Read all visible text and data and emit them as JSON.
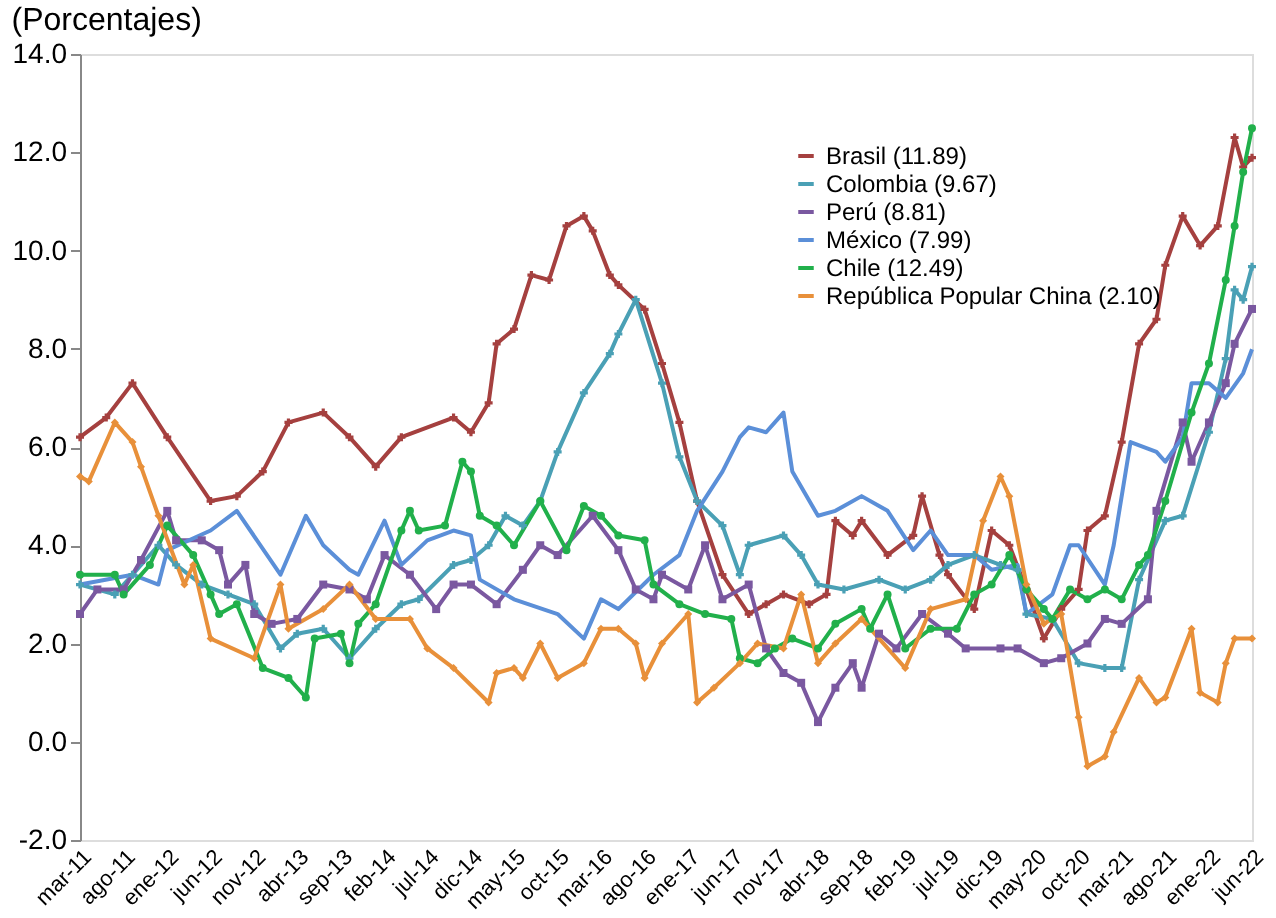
{
  "chart_data": {
    "type": "line",
    "title": "(Porcentajes)",
    "legend": "top right",
    "grid": false,
    "xlim": [
      "2011-03",
      "2022-06"
    ],
    "xticks": [
      {
        "value": "2011-03",
        "label": "mar-11"
      },
      {
        "value": "2011-08",
        "label": "ago-11"
      },
      {
        "value": "2012-01",
        "label": "ene-12"
      },
      {
        "value": "2012-06",
        "label": "jun-12"
      },
      {
        "value": "2012-11",
        "label": "nov-12"
      },
      {
        "value": "2013-04",
        "label": "abr-13"
      },
      {
        "value": "2013-09",
        "label": "sep-13"
      },
      {
        "value": "2014-02",
        "label": "feb-14"
      },
      {
        "value": "2014-07",
        "label": "jul-14"
      },
      {
        "value": "2014-12",
        "label": "dic-14"
      },
      {
        "value": "2015-05",
        "label": "may-15"
      },
      {
        "value": "2015-10",
        "label": "oct-15"
      },
      {
        "value": "2016-03",
        "label": "mar-16"
      },
      {
        "value": "2016-08",
        "label": "ago-16"
      },
      {
        "value": "2017-01",
        "label": "ene-17"
      },
      {
        "value": "2017-06",
        "label": "jun-17"
      },
      {
        "value": "2017-11",
        "label": "nov-17"
      },
      {
        "value": "2018-04",
        "label": "abr-18"
      },
      {
        "value": "2018-09",
        "label": "sep-18"
      },
      {
        "value": "2019-02",
        "label": "feb-19"
      },
      {
        "value": "2019-07",
        "label": "jul-19"
      },
      {
        "value": "2019-12",
        "label": "dic-19"
      },
      {
        "value": "2020-05",
        "label": "may-20"
      },
      {
        "value": "2020-10",
        "label": "oct-20"
      },
      {
        "value": "2021-03",
        "label": "mar-21"
      },
      {
        "value": "2021-08",
        "label": "ago-21"
      },
      {
        "value": "2022-01",
        "label": "ene-22"
      },
      {
        "value": "2022-06",
        "label": "jun-22"
      }
    ],
    "ylim": [
      -2,
      14
    ],
    "yticks": [
      {
        "value": -2,
        "label": "-2.0"
      },
      {
        "value": 0,
        "label": "0.0"
      },
      {
        "value": 2,
        "label": "2.0"
      },
      {
        "value": 4,
        "label": "4.0"
      },
      {
        "value": 6,
        "label": "6.0"
      },
      {
        "value": 8,
        "label": "8.0"
      },
      {
        "value": 10,
        "label": "10.0"
      },
      {
        "value": 12,
        "label": "12.0"
      },
      {
        "value": 14,
        "label": "14.0"
      }
    ],
    "series": [
      {
        "name": "Brasil (11.89)",
        "color": "#a5403f",
        "marker": "cross",
        "x": [
          "2011-03",
          "2011-06",
          "2011-09",
          "2012-01",
          "2012-06",
          "2012-09",
          "2012-12",
          "2013-03",
          "2013-07",
          "2013-10",
          "2014-01",
          "2014-04",
          "2014-10",
          "2014-12",
          "2015-02",
          "2015-03",
          "2015-05",
          "2015-07",
          "2015-09",
          "2015-11",
          "2016-01",
          "2016-02",
          "2016-04",
          "2016-05",
          "2016-08",
          "2016-10",
          "2016-12",
          "2017-02",
          "2017-05",
          "2017-08",
          "2017-10",
          "2017-12",
          "2018-03",
          "2018-05",
          "2018-06",
          "2018-08",
          "2018-09",
          "2018-12",
          "2019-03",
          "2019-04",
          "2019-06",
          "2019-07",
          "2019-10",
          "2019-12",
          "2020-02",
          "2020-04",
          "2020-06",
          "2020-08",
          "2020-10",
          "2020-11",
          "2021-01",
          "2021-03",
          "2021-05",
          "2021-07",
          "2021-08",
          "2021-10",
          "2021-12",
          "2022-02",
          "2022-04",
          "2022-05",
          "2022-06"
        ],
        "values": [
          6.2,
          6.6,
          7.3,
          6.2,
          4.9,
          5.0,
          5.5,
          6.5,
          6.7,
          6.2,
          5.6,
          6.2,
          6.6,
          6.3,
          6.9,
          8.1,
          8.4,
          9.5,
          9.4,
          10.5,
          10.7,
          10.4,
          9.5,
          9.3,
          8.8,
          7.7,
          6.5,
          4.9,
          3.4,
          2.6,
          2.8,
          3.0,
          2.8,
          3.0,
          4.5,
          4.2,
          4.5,
          3.8,
          4.2,
          5.0,
          3.8,
          3.4,
          2.7,
          4.3,
          4.0,
          3.1,
          2.1,
          2.7,
          3.1,
          4.3,
          4.6,
          6.1,
          8.1,
          8.6,
          9.7,
          10.7,
          10.1,
          10.5,
          12.3,
          11.7,
          11.89
        ]
      },
      {
        "name": "Colombia (9.67)",
        "color": "#4aa0b5",
        "marker": "cross",
        "x": [
          "2011-03",
          "2011-07",
          "2011-09",
          "2011-12",
          "2012-02",
          "2012-05",
          "2012-08",
          "2012-11",
          "2013-02",
          "2013-04",
          "2013-07",
          "2013-10",
          "2014-01",
          "2014-04",
          "2014-06",
          "2014-10",
          "2014-12",
          "2015-02",
          "2015-04",
          "2015-06",
          "2015-08",
          "2015-10",
          "2016-01",
          "2016-04",
          "2016-05",
          "2016-07",
          "2016-10",
          "2016-12",
          "2017-02",
          "2017-05",
          "2017-07",
          "2017-08",
          "2017-12",
          "2018-02",
          "2018-04",
          "2018-07",
          "2018-11",
          "2019-02",
          "2019-05",
          "2019-07",
          "2019-10",
          "2020-01",
          "2020-03",
          "2020-04",
          "2020-07",
          "2020-10",
          "2021-01",
          "2021-03",
          "2021-05",
          "2021-08",
          "2021-10",
          "2022-01",
          "2022-03",
          "2022-04",
          "2022-05",
          "2022-06"
        ],
        "values": [
          3.2,
          3.0,
          3.4,
          4.0,
          3.6,
          3.2,
          3.0,
          2.8,
          1.9,
          2.2,
          2.3,
          1.7,
          2.3,
          2.8,
          2.9,
          3.6,
          3.7,
          4.0,
          4.6,
          4.4,
          4.9,
          5.9,
          7.1,
          7.9,
          8.3,
          9.0,
          7.3,
          5.8,
          4.9,
          4.4,
          3.4,
          4.0,
          4.2,
          3.8,
          3.2,
          3.1,
          3.3,
          3.1,
          3.3,
          3.6,
          3.8,
          3.6,
          3.5,
          2.6,
          2.5,
          1.6,
          1.5,
          1.5,
          3.3,
          4.5,
          4.6,
          6.3,
          7.8,
          9.2,
          9.0,
          9.67
        ]
      },
      {
        "name": "Perú (8.81)",
        "color": "#7a58a0",
        "marker": "square",
        "x": [
          "2011-03",
          "2011-05",
          "2011-08",
          "2011-10",
          "2012-01",
          "2012-02",
          "2012-05",
          "2012-07",
          "2012-08",
          "2012-10",
          "2012-11",
          "2013-01",
          "2013-04",
          "2013-07",
          "2013-10",
          "2013-12",
          "2014-02",
          "2014-05",
          "2014-08",
          "2014-10",
          "2014-12",
          "2015-03",
          "2015-06",
          "2015-08",
          "2015-10",
          "2016-02",
          "2016-05",
          "2016-07",
          "2016-09",
          "2016-10",
          "2017-01",
          "2017-03",
          "2017-05",
          "2017-08",
          "2017-10",
          "2017-12",
          "2018-02",
          "2018-04",
          "2018-06",
          "2018-08",
          "2018-09",
          "2018-11",
          "2019-01",
          "2019-04",
          "2019-07",
          "2019-09",
          "2020-01",
          "2020-03",
          "2020-06",
          "2020-08",
          "2020-11",
          "2021-01",
          "2021-03",
          "2021-06",
          "2021-07",
          "2021-10",
          "2021-11",
          "2022-01",
          "2022-03",
          "2022-04",
          "2022-06"
        ],
        "values": [
          2.6,
          3.1,
          3.1,
          3.7,
          4.7,
          4.1,
          4.1,
          3.9,
          3.2,
          3.6,
          2.6,
          2.4,
          2.5,
          3.2,
          3.1,
          2.9,
          3.8,
          3.4,
          2.7,
          3.2,
          3.2,
          2.8,
          3.5,
          4.0,
          3.8,
          4.6,
          3.9,
          3.1,
          2.9,
          3.4,
          3.1,
          4.0,
          2.9,
          3.2,
          1.9,
          1.4,
          1.2,
          0.4,
          1.1,
          1.6,
          1.1,
          2.2,
          1.9,
          2.6,
          2.2,
          1.9,
          1.9,
          1.9,
          1.6,
          1.7,
          2.0,
          2.5,
          2.4,
          2.9,
          4.7,
          6.5,
          5.7,
          6.5,
          7.3,
          8.1,
          8.81
        ]
      },
      {
        "name": "México (7.99)",
        "color": "#5b8fd8",
        "marker": "none",
        "x": [
          "2011-03",
          "2011-09",
          "2011-12",
          "2012-01",
          "2012-06",
          "2012-09",
          "2013-02",
          "2013-05",
          "2013-07",
          "2013-10",
          "2013-11",
          "2014-02",
          "2014-04",
          "2014-07",
          "2014-10",
          "2014-12",
          "2015-01",
          "2015-05",
          "2015-10",
          "2016-01",
          "2016-03",
          "2016-05",
          "2016-09",
          "2016-12",
          "2017-02",
          "2017-05",
          "2017-07",
          "2017-08",
          "2017-10",
          "2017-12",
          "2018-01",
          "2018-04",
          "2018-06",
          "2018-09",
          "2018-12",
          "2019-03",
          "2019-05",
          "2019-07",
          "2019-10",
          "2019-12",
          "2020-03",
          "2020-04",
          "2020-07",
          "2020-09",
          "2020-10",
          "2021-01",
          "2021-02",
          "2021-04",
          "2021-07",
          "2021-08",
          "2021-10",
          "2021-11",
          "2022-01",
          "2022-03",
          "2022-05",
          "2022-06"
        ],
        "values": [
          3.2,
          3.4,
          3.2,
          3.9,
          4.3,
          4.7,
          3.4,
          4.6,
          4.0,
          3.5,
          3.4,
          4.5,
          3.6,
          4.1,
          4.3,
          4.2,
          3.3,
          2.9,
          2.6,
          2.1,
          2.9,
          2.7,
          3.4,
          3.8,
          4.7,
          5.5,
          6.2,
          6.4,
          6.3,
          6.7,
          5.5,
          4.6,
          4.7,
          5.0,
          4.7,
          3.9,
          4.3,
          3.8,
          3.8,
          3.5,
          3.6,
          2.6,
          3.0,
          4.0,
          4.0,
          3.2,
          4.0,
          6.1,
          5.9,
          5.7,
          6.2,
          7.3,
          7.3,
          7.0,
          7.5,
          7.99
        ]
      },
      {
        "name": "Chile (12.49)",
        "color": "#21b04b",
        "marker": "circle",
        "x": [
          "2011-03",
          "2011-07",
          "2011-08",
          "2011-11",
          "2012-01",
          "2012-04",
          "2012-06",
          "2012-07",
          "2012-09",
          "2012-12",
          "2013-03",
          "2013-05",
          "2013-06",
          "2013-09",
          "2013-10",
          "2013-11",
          "2014-01",
          "2014-04",
          "2014-05",
          "2014-06",
          "2014-09",
          "2014-11",
          "2014-12",
          "2015-01",
          "2015-03",
          "2015-05",
          "2015-08",
          "2015-11",
          "2016-01",
          "2016-03",
          "2016-05",
          "2016-08",
          "2016-09",
          "2016-12",
          "2017-03",
          "2017-06",
          "2017-07",
          "2017-09",
          "2017-11",
          "2018-01",
          "2018-04",
          "2018-06",
          "2018-09",
          "2018-10",
          "2018-12",
          "2019-02",
          "2019-05",
          "2019-08",
          "2019-10",
          "2019-12",
          "2020-02",
          "2020-04",
          "2020-06",
          "2020-07",
          "2020-09",
          "2020-11",
          "2021-01",
          "2021-03",
          "2021-05",
          "2021-06",
          "2021-08",
          "2021-11",
          "2022-01",
          "2022-03",
          "2022-04",
          "2022-05",
          "2022-06"
        ],
        "values": [
          3.4,
          3.4,
          3.0,
          3.6,
          4.4,
          3.8,
          3.0,
          2.6,
          2.8,
          1.5,
          1.3,
          0.9,
          2.1,
          2.2,
          1.6,
          2.4,
          2.8,
          4.3,
          4.7,
          4.3,
          4.4,
          5.7,
          5.5,
          4.6,
          4.4,
          4.0,
          4.9,
          3.9,
          4.8,
          4.6,
          4.2,
          4.1,
          3.2,
          2.8,
          2.6,
          2.5,
          1.7,
          1.6,
          1.9,
          2.1,
          1.9,
          2.4,
          2.7,
          2.3,
          3.0,
          1.9,
          2.3,
          2.3,
          3.0,
          3.2,
          3.8,
          3.1,
          2.7,
          2.5,
          3.1,
          2.9,
          3.1,
          2.9,
          3.6,
          3.8,
          4.9,
          6.7,
          7.7,
          9.4,
          10.5,
          11.6,
          12.49
        ]
      },
      {
        "name": "República Popular China (2.10)",
        "color": "#e8903a",
        "marker": "diamond",
        "x": [
          "2011-03",
          "2011-04",
          "2011-07",
          "2011-09",
          "2011-10",
          "2011-12",
          "2012-03",
          "2012-04",
          "2012-06",
          "2012-11",
          "2013-02",
          "2013-03",
          "2013-07",
          "2013-10",
          "2014-01",
          "2014-05",
          "2014-07",
          "2014-10",
          "2015-02",
          "2015-03",
          "2015-05",
          "2015-06",
          "2015-08",
          "2015-10",
          "2016-01",
          "2016-03",
          "2016-05",
          "2016-07",
          "2016-08",
          "2016-10",
          "2017-01",
          "2017-02",
          "2017-04",
          "2017-07",
          "2017-09",
          "2017-12",
          "2018-02",
          "2018-04",
          "2018-06",
          "2018-09",
          "2019-02",
          "2019-05",
          "2019-09",
          "2019-11",
          "2020-01",
          "2020-02",
          "2020-04",
          "2020-06",
          "2020-08",
          "2020-10",
          "2020-11",
          "2021-01",
          "2021-02",
          "2021-05",
          "2021-07",
          "2021-08",
          "2021-11",
          "2021-12",
          "2022-02",
          "2022-03",
          "2022-04",
          "2022-06"
        ],
        "values": [
          5.4,
          5.3,
          6.5,
          6.1,
          5.6,
          4.6,
          3.2,
          3.6,
          2.1,
          1.7,
          3.2,
          2.3,
          2.7,
          3.2,
          2.5,
          2.5,
          1.9,
          1.5,
          0.8,
          1.4,
          1.5,
          1.3,
          2.0,
          1.3,
          1.6,
          2.3,
          2.3,
          2.0,
          1.3,
          2.0,
          2.6,
          0.8,
          1.1,
          1.6,
          2.0,
          1.9,
          3.0,
          1.6,
          2.0,
          2.5,
          1.5,
          2.7,
          2.9,
          4.5,
          5.4,
          5.0,
          3.2,
          2.4,
          2.6,
          0.5,
          -0.5,
          -0.3,
          0.2,
          1.3,
          0.8,
          0.9,
          2.3,
          1.0,
          0.8,
          1.6,
          2.1,
          2.1
        ]
      }
    ]
  }
}
